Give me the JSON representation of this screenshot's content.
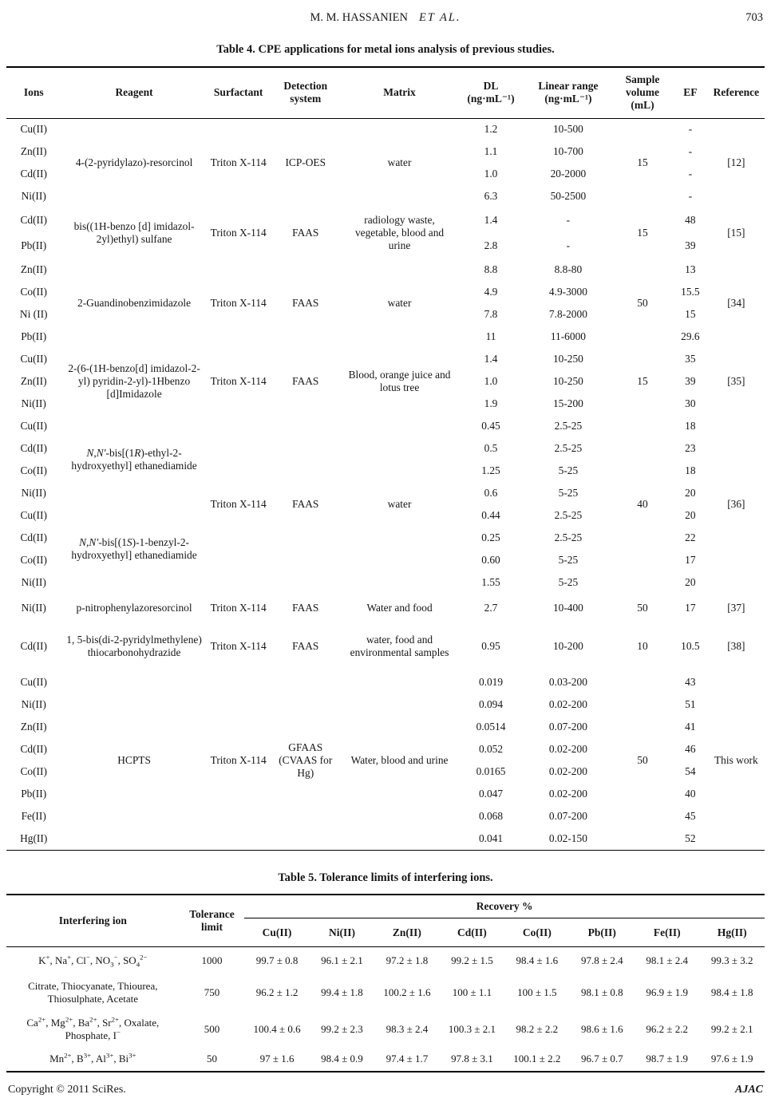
{
  "page_header": {
    "author": "M. M. HASSANIEN",
    "etal": "ET  AL.",
    "page_number": "703"
  },
  "table4": {
    "title": "Table 4. CPE applications for metal ions analysis of previous studies.",
    "headers": {
      "ions": "Ions",
      "reagent": "Reagent",
      "surfactant": "Surfactant",
      "detection": "Detection system",
      "matrix": "Matrix",
      "dl": "DL (ng·mL⁻¹)",
      "linear_range": "Linear range (ng·mL⁻¹)",
      "sample_volume": "Sample volume (mL)",
      "ef": "EF",
      "reference": "Reference"
    },
    "rows": [
      {
        "ion": "Cu(II)",
        "reagent": "4-(2-pyridylazo)-resorcinol",
        "surfactant": "Triton X-114",
        "detection": "ICP-OES",
        "matrix": "water",
        "dl": "1.2",
        "range": "10-500",
        "volume": "15",
        "ef": "-",
        "reference": "[12]"
      },
      {
        "ion": "Zn(II)",
        "dl": "1.1",
        "range": "10-700",
        "ef": "-"
      },
      {
        "ion": "Cd(II)",
        "dl": "1.0",
        "range": "20-2000",
        "ef": "-"
      },
      {
        "ion": "Ni(II)",
        "dl": "6.3",
        "range": "50-2500",
        "ef": "-"
      },
      {
        "ion": "Cd(II)",
        "reagent": "bis((1H-benzo [d] imidazol-2yl)ethyl) sulfane",
        "surfactant": "Triton X-114",
        "detection": "FAAS",
        "matrix": "radiology waste, vegetable, blood and urine",
        "dl": "1.4",
        "range": "-",
        "volume": "15",
        "ef": "48",
        "reference": "[15]"
      },
      {
        "ion": "Pb(II)",
        "dl": "2.8",
        "range": "-",
        "ef": "39"
      },
      {
        "ion": "Zn(II)",
        "reagent": "2-Guandinobenzimidazole",
        "surfactant": "Triton X-114",
        "detection": "FAAS",
        "matrix": "water",
        "dl": "8.8",
        "range": "8.8-80",
        "volume": "50",
        "ef": "13",
        "reference": "[34]"
      },
      {
        "ion": "Co(II)",
        "dl": "4.9",
        "range": "4.9-3000",
        "ef": "15.5"
      },
      {
        "ion": "Ni (II)",
        "dl": "7.8",
        "range": "7.8-2000",
        "ef": "15"
      },
      {
        "ion": "Pb(II)",
        "dl": "11",
        "range": "11-6000",
        "ef": "29.6"
      },
      {
        "ion": "Cu(II)",
        "reagent": "2-(6-(1H-benzo[d] imidazol-2-yl) pyridin-2-yl)-1Hbenzo [d]Imidazole",
        "surfactant": "Triton X-114",
        "detection": "FAAS",
        "matrix": "Blood, orange juice and lotus tree",
        "dl": "1.4",
        "range": "10-250",
        "volume": "15",
        "ef": "35",
        "reference": "[35]"
      },
      {
        "ion": "Zn(II)",
        "dl": "1.0",
        "range": "10-250",
        "ef": "39"
      },
      {
        "ion": "Ni(II)",
        "dl": "1.9",
        "range": "15-200",
        "ef": "30"
      },
      {
        "ion": "Cu(II)",
        "reagent": "<i>N,N'</i>-bis[(1<i>R</i>)-ethyl-2-hydroxyethyl] ethanediamide",
        "surfactant": "Triton X-114",
        "detection": "FAAS",
        "matrix": "water",
        "dl": "0.45",
        "range": "2.5-25",
        "volume": "40",
        "ef": "18",
        "reference": "[36]"
      },
      {
        "ion": "Cd(II)",
        "dl": "0.5",
        "range": "2.5-25",
        "ef": "23"
      },
      {
        "ion": "Co(II)",
        "dl": "1.25",
        "range": "5-25",
        "ef": "18"
      },
      {
        "ion": "Ni(II)",
        "dl": "0.6",
        "range": "5-25",
        "ef": "20"
      },
      {
        "ion": "Cu(II)",
        "reagent": "<i>N,N'</i>-bis[(1<i>S</i>)-1-benzyl-2-hydroxyethyl] ethanediamide",
        "dl": "0.44",
        "range": "2.5-25",
        "ef": "20"
      },
      {
        "ion": "Cd(II)",
        "dl": "0.25",
        "range": "2.5-25",
        "ef": "22"
      },
      {
        "ion": "Co(II)",
        "dl": "0.60",
        "range": "5-25",
        "ef": "17"
      },
      {
        "ion": "Ni(II)",
        "dl": "1.55",
        "range": "5-25",
        "ef": "20"
      },
      {
        "ion": "Ni(II)",
        "reagent": "p-nitrophenylazoresorcinol",
        "surfactant": "Triton X-114",
        "detection": "FAAS",
        "matrix": "Water and food",
        "dl": "2.7",
        "range": "10-400",
        "volume": "50",
        "ef": "17",
        "reference": "[37]"
      },
      {
        "ion": "Cd(II)",
        "reagent": "1, 5-bis(di-2-pyridylmethylene) thiocarbonohydrazide",
        "surfactant": "Triton X-114",
        "detection": "FAAS",
        "matrix": "water, food and environmental samples",
        "dl": "0.95",
        "range": "10-200",
        "volume": "10",
        "ef": "10.5",
        "reference": "[38]"
      },
      {
        "ion": "Cu(II)",
        "reagent": "HCPTS",
        "surfactant": "Triton X-114",
        "detection": "GFAAS (CVAAS for Hg)",
        "matrix": "Water, blood and urine",
        "dl": "0.019",
        "range": "0.03-200",
        "volume": "50",
        "ef": "43",
        "reference": "This work"
      },
      {
        "ion": "Ni(II)",
        "dl": "0.094",
        "range": "0.02-200",
        "ef": "51"
      },
      {
        "ion": "Zn(II)",
        "dl": "0.0514",
        "range": "0.07-200",
        "ef": "41"
      },
      {
        "ion": "Cd(II)",
        "dl": "0.052",
        "range": "0.02-200",
        "ef": "46"
      },
      {
        "ion": "Co(II)",
        "dl": "0.0165",
        "range": "0.02-200",
        "ef": "54"
      },
      {
        "ion": "Pb(II)",
        "dl": "0.047",
        "range": "0.02-200",
        "ef": "40"
      },
      {
        "ion": "Fe(II)",
        "dl": "0.068",
        "range": "0.07-200",
        "ef": "45"
      },
      {
        "ion": "Hg(II)",
        "dl": "0.041",
        "range": "0.02-150",
        "ef": "52"
      }
    ]
  },
  "table5": {
    "title": "Table 5. Tolerance limits of interfering ions.",
    "headers": {
      "interfering_ion": "Interfering ion",
      "tolerance_limit": "Tolerance limit",
      "recovery": "Recovery %",
      "ions": [
        "Cu(II)",
        "Ni(II)",
        "Zn(II)",
        "Cd(II)",
        "Co(II)",
        "Pb(II)",
        "Fe(II)",
        "Hg(II)"
      ]
    },
    "rows": [
      {
        "ions": "K<sup>+</sup>, Na<sup>+</sup>, Cl<sup>−</sup>,  NO<sub>3</sub><sup>−</sup>,  SO<sub>4</sub><sup>2−</sup>",
        "tolerance": "1000",
        "values": [
          "99.7 ± 0.8",
          "96.1 ± 2.1",
          "97.2 ± 1.8",
          "99.2 ± 1.5",
          "98.4 ± 1.6",
          "97.8 ± 2.4",
          "98.1 ± 2.4",
          "99.3 ± 3.2"
        ]
      },
      {
        "ions": "Citrate, Thiocyanate, Thiourea, Thiosulphate, Acetate",
        "tolerance": "750",
        "values": [
          "96.2 ± 1.2",
          "99.4 ± 1.8",
          "100.2 ± 1.6",
          "100 ± 1.1",
          "100 ± 1.5",
          "98.1 ± 0.8",
          "96.9 ± 1.9",
          "98.4 ± 1.8"
        ]
      },
      {
        "ions": "Ca<sup>2+</sup>, Mg<sup>2+</sup>, Ba<sup>2+</sup>, Sr<sup>2+</sup>, Oxalate, Phosphate, I<sup>−</sup>",
        "tolerance": "500",
        "values": [
          "100.4 ± 0.6",
          "99.2 ± 2.3",
          "98.3 ± 2.4",
          "100.3 ± 2.1",
          "98.2 ± 2.2",
          "98.6 ± 1.6",
          "96.2 ± 2.2",
          "99.2 ± 2.1"
        ]
      },
      {
        "ions": "Mn<sup>2+</sup>, B<sup>3+</sup>, Al<sup>3+</sup>, Bi<sup>3+</sup>",
        "tolerance": "50",
        "values": [
          "97 ± 1.6",
          "98.4 ± 0.9",
          "97.4 ± 1.7",
          "97.8 ± 3.1",
          "100.1 ± 2.2",
          "96.7 ± 0.7",
          "98.7 ± 1.9",
          "97.6 ± 1.9"
        ]
      }
    ]
  },
  "footer": {
    "copyright": "Copyright © 2011 SciRes.",
    "journal": "AJAC"
  }
}
